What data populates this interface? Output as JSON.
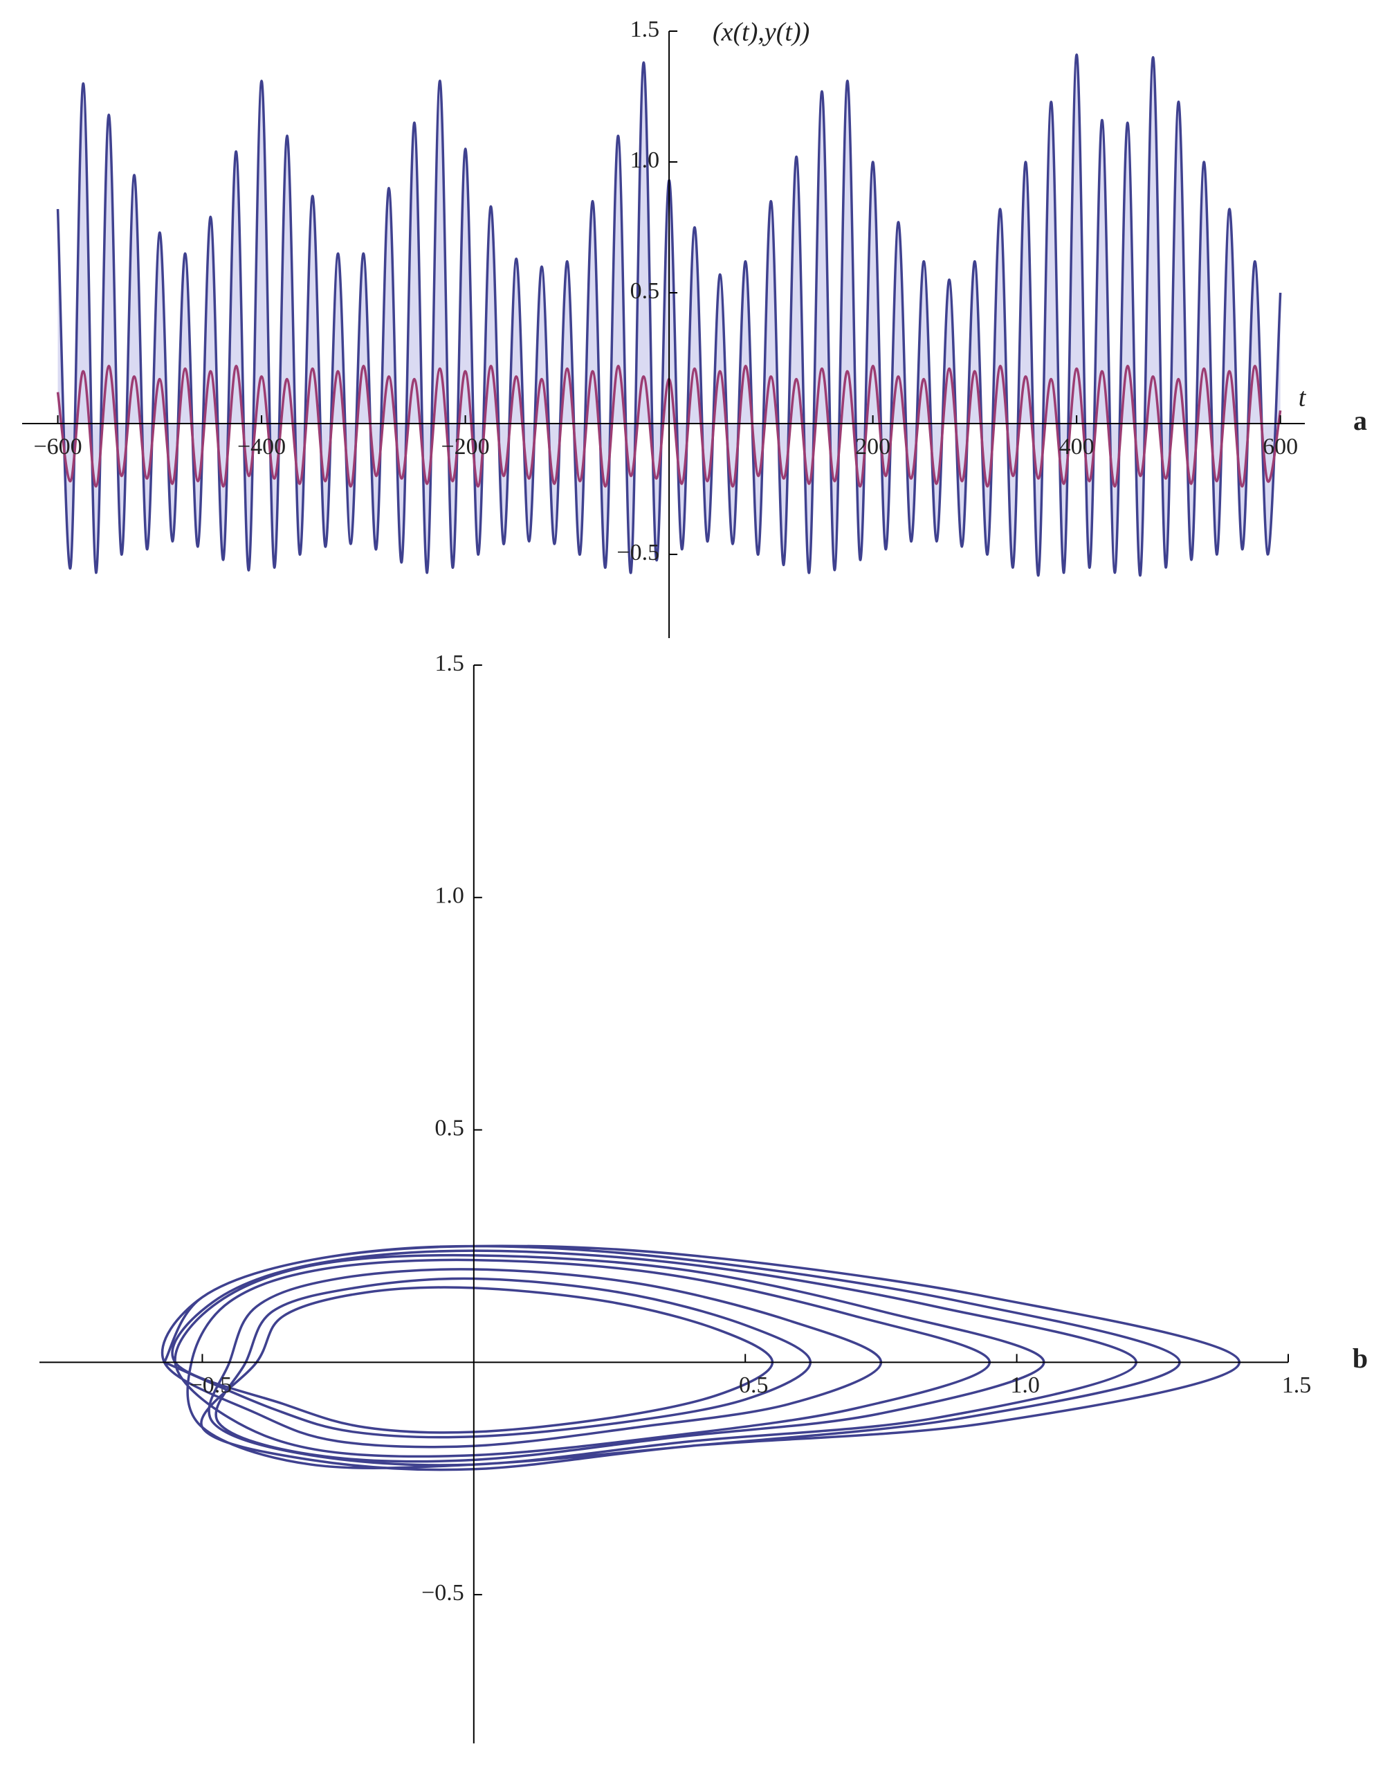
{
  "chart_data": [
    {
      "type": "line",
      "panel": "a",
      "xlabel": "t",
      "ylabel": "(x(t),y(t))",
      "xlim": [
        -635,
        624
      ],
      "ylim": [
        -0.82,
        1.5
      ],
      "xticks": [
        {
          "value": -600,
          "label": "−600"
        },
        {
          "value": -400,
          "label": "−400"
        },
        {
          "value": -200,
          "label": "−200"
        },
        200,
        400,
        600
      ],
      "yticks": [
        {
          "value": -0.5,
          "label": "−0.5"
        },
        0.5,
        {
          "value": 1,
          "label": "1.0"
        },
        1.5
      ],
      "x": [
        -600,
        -587.5,
        -575,
        -562.5,
        -550,
        -537.5,
        -525,
        -512.5,
        -500,
        -487.5,
        -475,
        -462.5,
        -450,
        -437.5,
        -425,
        -412.5,
        -400,
        -387.5,
        -375,
        -362.5,
        -350,
        -337.5,
        -325,
        -312.5,
        -300,
        -287.5,
        -275,
        -262.5,
        -250,
        -237.5,
        -225,
        -212.5,
        -200,
        -187.5,
        -175,
        -162.5,
        -150,
        -137.5,
        -125,
        -112.5,
        -100,
        -87.5,
        -75,
        -62.5,
        -50,
        -37.5,
        -25,
        -12.5,
        0,
        12.5,
        25,
        37.5,
        50,
        62.5,
        75,
        87.5,
        100,
        112.5,
        125,
        137.5,
        150,
        162.5,
        175,
        187.5,
        200,
        212.5,
        225,
        237.5,
        250,
        262.5,
        275,
        287.5,
        300,
        312.5,
        325,
        337.5,
        350,
        362.5,
        375,
        387.5,
        400,
        412.5,
        425,
        437.5,
        450,
        462.5,
        475,
        487.5,
        500,
        512.5,
        525,
        537.5,
        550,
        562.5,
        575,
        587.5,
        600
      ],
      "series": [
        {
          "color": "#3f418f",
          "fill": "#d4d4f0",
          "values": [
            0.82,
            -0.55,
            1.3,
            -0.57,
            1.18,
            -0.5,
            0.95,
            -0.48,
            0.73,
            -0.45,
            0.65,
            -0.47,
            0.79,
            -0.52,
            1.04,
            -0.56,
            1.31,
            -0.55,
            1.1,
            -0.5,
            0.87,
            -0.47,
            0.65,
            -0.46,
            0.65,
            -0.48,
            0.9,
            -0.53,
            1.15,
            -0.57,
            1.31,
            -0.55,
            1.05,
            -0.5,
            0.83,
            -0.46,
            0.63,
            -0.45,
            0.6,
            -0.46,
            0.62,
            -0.5,
            0.85,
            -0.55,
            1.1,
            -0.57,
            1.38,
            -0.52,
            0.93,
            -0.48,
            0.75,
            -0.45,
            0.57,
            -0.46,
            0.62,
            -0.5,
            0.85,
            -0.54,
            1.02,
            -0.57,
            1.27,
            -0.56,
            1.31,
            -0.52,
            1.0,
            -0.48,
            0.77,
            -0.45,
            0.62,
            -0.45,
            0.55,
            -0.47,
            0.62,
            -0.5,
            0.82,
            -0.55,
            1.0,
            -0.58,
            1.23,
            -0.57,
            1.41,
            -0.55,
            1.16,
            -0.57,
            1.15,
            -0.58,
            1.4,
            -0.55,
            1.23,
            -0.52,
            1.0,
            -0.5,
            0.82,
            -0.48,
            0.62,
            -0.5,
            0.5
          ]
        },
        {
          "color": "#9c3c72",
          "values": [
            0.12,
            -0.22,
            0.2,
            -0.24,
            0.22,
            -0.2,
            0.18,
            -0.21,
            0.17,
            -0.23,
            0.21,
            -0.22,
            0.2,
            -0.24,
            0.22,
            -0.2,
            0.18,
            -0.21,
            0.17,
            -0.23,
            0.21,
            -0.22,
            0.2,
            -0.24,
            0.22,
            -0.2,
            0.18,
            -0.21,
            0.17,
            -0.23,
            0.21,
            -0.22,
            0.2,
            -0.24,
            0.22,
            -0.2,
            0.18,
            -0.21,
            0.17,
            -0.23,
            0.21,
            -0.22,
            0.2,
            -0.24,
            0.22,
            -0.2,
            0.18,
            -0.21,
            0.17,
            -0.23,
            0.21,
            -0.22,
            0.2,
            -0.24,
            0.22,
            -0.2,
            0.18,
            -0.21,
            0.17,
            -0.23,
            0.21,
            -0.22,
            0.2,
            -0.24,
            0.22,
            -0.2,
            0.18,
            -0.21,
            0.17,
            -0.23,
            0.21,
            -0.22,
            0.2,
            -0.24,
            0.22,
            -0.2,
            0.18,
            -0.21,
            0.17,
            -0.23,
            0.21,
            -0.22,
            0.2,
            -0.24,
            0.22,
            -0.2,
            0.18,
            -0.21,
            0.17,
            -0.23,
            0.21,
            -0.22,
            0.2,
            -0.24,
            0.22,
            -0.22,
            0.05
          ]
        }
      ]
    },
    {
      "type": "line",
      "panel": "b",
      "xlim": [
        -0.8,
        1.5
      ],
      "ylim": [
        -0.82,
        1.5
      ],
      "xticks": [
        {
          "value": -0.5,
          "label": "−0.5"
        },
        0.5,
        {
          "value": 1,
          "label": "1.0"
        },
        1.5
      ],
      "yticks": [
        {
          "value": -0.5,
          "label": "−0.5"
        },
        0.5,
        {
          "value": 1,
          "label": "1.0"
        },
        1.5
      ],
      "x": [
        -0.57,
        -0.5,
        -0.3,
        0,
        0.4,
        0.95,
        1.41,
        0.95,
        0.4,
        0,
        -0.3,
        -0.5,
        -0.4,
        -0.35,
        -0.2,
        0,
        0.25,
        0.45,
        0.55,
        0.45,
        0.25,
        0,
        -0.2,
        -0.35,
        -0.55,
        -0.48,
        -0.3,
        0,
        0.4,
        0.85,
        1.22,
        0.85,
        0.4,
        0,
        -0.3,
        -0.48,
        -0.45,
        -0.4,
        -0.25,
        0,
        0.3,
        0.58,
        0.75,
        0.58,
        0.3,
        0,
        -0.25,
        -0.4,
        -0.57,
        -0.5,
        -0.3,
        0,
        0.4,
        0.9,
        1.3,
        0.9,
        0.4,
        0,
        -0.3,
        -0.5,
        -0.52,
        -0.45,
        -0.28,
        0,
        0.35,
        0.7,
        0.95,
        0.7,
        0.35,
        0,
        -0.28,
        -0.45,
        -0.55,
        -0.47,
        -0.29,
        0,
        0.38,
        0.75,
        1.05,
        0.75,
        0.38,
        0,
        -0.29,
        -0.47,
        -0.42,
        -0.37,
        -0.22,
        0,
        0.27,
        0.5,
        0.62,
        0.5,
        0.27,
        0,
        -0.22,
        -0.37,
        -0.57
      ],
      "series": [
        {
          "color": "#3f418f",
          "values": [
            0,
            0.14,
            0.22,
            0.25,
            0.23,
            0.14,
            0,
            -0.13,
            -0.18,
            -0.23,
            -0.21,
            -0.14,
            0,
            0.1,
            0.15,
            0.16,
            0.13,
            0.07,
            0,
            -0.07,
            -0.12,
            -0.15,
            -0.14,
            -0.09,
            0,
            0.13,
            0.21,
            0.24,
            0.21,
            0.12,
            0,
            -0.12,
            -0.17,
            -0.22,
            -0.2,
            -0.13,
            0,
            0.12,
            0.18,
            0.2,
            0.17,
            0.09,
            0,
            -0.09,
            -0.14,
            -0.18,
            -0.17,
            -0.11,
            0,
            0.14,
            0.22,
            0.25,
            0.22,
            0.13,
            0,
            -0.12,
            -0.18,
            -0.22,
            -0.22,
            -0.14,
            0,
            0.13,
            0.2,
            0.22,
            0.19,
            0.1,
            0,
            -0.1,
            -0.16,
            -0.2,
            -0.19,
            -0.12,
            0,
            0.13,
            0.21,
            0.23,
            0.2,
            0.11,
            0,
            -0.11,
            -0.16,
            -0.21,
            -0.2,
            -0.13,
            0,
            0.11,
            0.16,
            0.18,
            0.15,
            0.08,
            0,
            -0.08,
            -0.13,
            -0.16,
            -0.15,
            -0.1,
            0
          ]
        }
      ]
    }
  ]
}
